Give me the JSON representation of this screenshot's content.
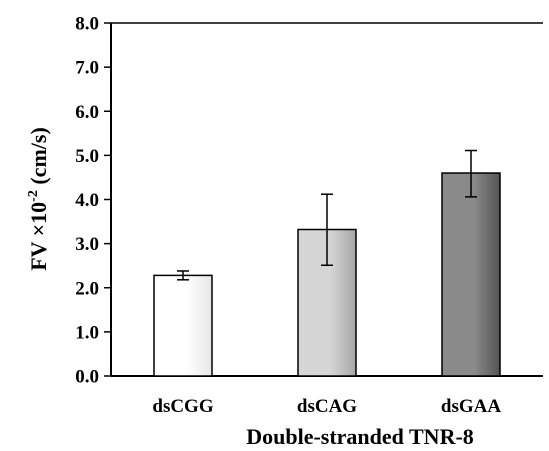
{
  "chart_data": {
    "type": "bar",
    "title": "",
    "xlabel": "Double-stranded TNR-8",
    "ylabel": {
      "main": "FV ×10",
      "superscript": "-2",
      "unit": " (cm/s)"
    },
    "ylim": [
      0,
      8
    ],
    "yticks": [
      "0.0",
      "1.0",
      "2.0",
      "3.0",
      "4.0",
      "5.0",
      "6.0",
      "7.0",
      "8.0"
    ],
    "categories": [
      "dsCGG",
      "dsCAG",
      "dsGAA"
    ],
    "values": [
      2.28,
      3.32,
      4.6
    ],
    "error_low": [
      2.18,
      2.51,
      4.06
    ],
    "error_high": [
      2.38,
      4.12,
      5.11
    ],
    "bar_styles": [
      {
        "light": "#ffffff",
        "dark": "#e6e6e6"
      },
      {
        "light": "#d6d6d6",
        "dark": "#a6a6a6"
      },
      {
        "light": "#8a8a8a",
        "dark": "#555555"
      }
    ],
    "grid": false,
    "legend": "none"
  }
}
